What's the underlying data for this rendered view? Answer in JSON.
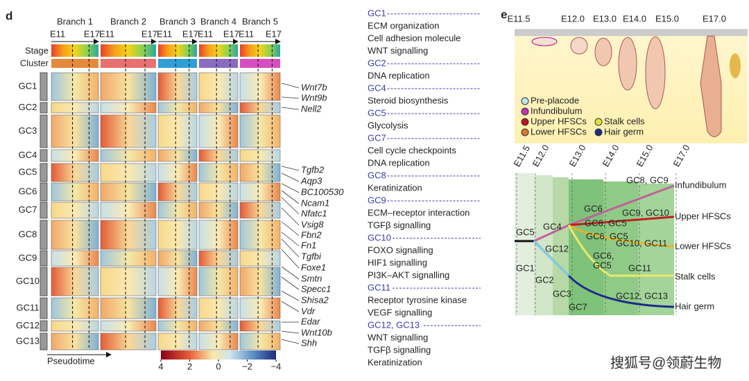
{
  "panel_d": {
    "label": "d",
    "branches": [
      "Branch 1",
      "Branch 2",
      "Branch 3",
      "Branch 4",
      "Branch 5"
    ],
    "branch_start": "E11",
    "branch_end": "E17",
    "row_labels": [
      "Stage",
      "Cluster"
    ],
    "clusters": [
      "GC1",
      "GC2",
      "GC3",
      "GC4",
      "GC5",
      "GC6",
      "GC7",
      "GC8",
      "GC9",
      "GC10",
      "GC11",
      "GC12",
      "GC13"
    ],
    "genes": [
      "Wnt7b",
      "Wnt9b",
      "Nell2",
      "Tgfb2",
      "Aqp3",
      "BC100530",
      "Ncam1",
      "Nfatc1",
      "Vsig8",
      "Fbn2",
      "Fn1",
      "Tgfbi",
      "Foxe1",
      "Smtn",
      "Specc1",
      "Shisa2",
      "Vdr",
      "Edar",
      "Wnt10b",
      "Shh"
    ],
    "x_axis_label": "Pseudotime",
    "colorbar_ticks": [
      4,
      2,
      0,
      {
        "value": -2,
        "label": "−2"
      },
      {
        "value": -4,
        "label": "−4"
      }
    ]
  },
  "terms": [
    {
      "cluster": "GC1",
      "items": [
        "ECM organization",
        "Cell adhesion molecule",
        "WNT signalling"
      ]
    },
    {
      "cluster": "GC2",
      "items": [
        "DNA replication"
      ]
    },
    {
      "cluster": "GC4",
      "items": [
        "Steroid biosynthesis"
      ]
    },
    {
      "cluster": "GC5",
      "items": [
        "Glycolysis"
      ]
    },
    {
      "cluster": "GC7",
      "items": [
        "Cell cycle checkpoints",
        "DNA replication"
      ]
    },
    {
      "cluster": "GC8",
      "items": [
        "Keratinization"
      ]
    },
    {
      "cluster": "GC9",
      "items": [
        "ECM–receptor interaction",
        "TGFβ signalling"
      ]
    },
    {
      "cluster": "GC10",
      "items": [
        "FOXO signalling",
        "HIF1 signalling",
        "PI3K–AKT signalling"
      ]
    },
    {
      "cluster": "GC11",
      "items": [
        "Receptor tyrosine kinase",
        "VEGF signalling"
      ]
    },
    {
      "cluster": "GC12, GC13",
      "items": [
        "WNT signalling",
        "TGFβ signalling",
        "Keratinization"
      ]
    }
  ],
  "panel_e": {
    "label": "e",
    "stages": [
      "E11.5",
      "E12.0",
      "E13.0",
      "E14.0",
      "E15.0",
      "E17.0"
    ],
    "legend": [
      "Pre-placode",
      "Infundibulum",
      "Upper HFSCs",
      "Stalk cells",
      "Lower HFSCs",
      "Hair germ"
    ],
    "tree_labels": [
      "GC5",
      "GC4",
      "GC12",
      "GC1",
      "GC2",
      "GC3",
      "GC7",
      "GC6",
      "GC6, GC5",
      "GC6, GC5",
      "GC6,",
      "GC5",
      "GC8, GC9",
      "GC9, GC10",
      "GC10, GC11",
      "GC11",
      "GC12, GC13"
    ],
    "fates": [
      "Infundibulum",
      "Upper HFSCs",
      "Lower HFSCs",
      "Stalk cells",
      "Hair germ"
    ]
  },
  "watermark": "搜狐号@领蔚生物"
}
